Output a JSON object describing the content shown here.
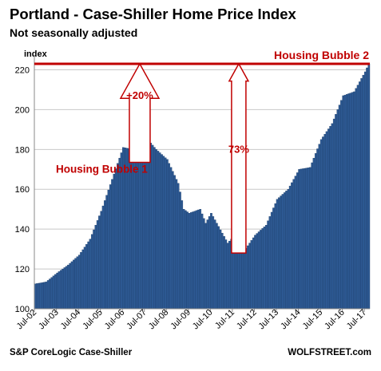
{
  "chart_data": {
    "type": "bar",
    "title": "Portland - Case-Shiller Home Price Index",
    "subtitle": "Not seasonally adjusted",
    "ylabel": "index",
    "xlabel": "",
    "ylim": [
      100,
      225
    ],
    "yticks": [
      100,
      120,
      140,
      160,
      180,
      200,
      220
    ],
    "xticks": [
      "Jul-02",
      "Jul-03",
      "Jul-04",
      "Jul-05",
      "Jul-06",
      "Jul-07",
      "Jul-08",
      "Jul-09",
      "Jul-10",
      "Jul-11",
      "Jul-12",
      "Jul-13",
      "Jul-14",
      "Jul-15",
      "Jul-16",
      "Jul-17"
    ],
    "grid": true,
    "x_start": "2002-07",
    "x_end": "2017-09",
    "bar_color": "#2e5a94",
    "annotation_color": "#c00000",
    "anchors": [
      [
        "2002-07",
        112.5
      ],
      [
        "2003-01",
        113.5
      ],
      [
        "2003-07",
        118
      ],
      [
        "2004-01",
        122
      ],
      [
        "2004-07",
        127
      ],
      [
        "2005-01",
        135
      ],
      [
        "2005-07",
        149
      ],
      [
        "2006-01",
        165
      ],
      [
        "2006-07",
        181
      ],
      [
        "2007-01",
        180
      ],
      [
        "2007-07",
        186.5
      ],
      [
        "2008-01",
        180
      ],
      [
        "2008-07",
        175
      ],
      [
        "2009-01",
        163
      ],
      [
        "2009-04",
        150
      ],
      [
        "2009-07",
        148
      ],
      [
        "2010-01",
        150
      ],
      [
        "2010-04",
        143
      ],
      [
        "2010-07",
        148
      ],
      [
        "2011-01",
        138
      ],
      [
        "2011-04",
        133
      ],
      [
        "2011-07",
        136
      ],
      [
        "2012-01",
        129
      ],
      [
        "2012-07",
        137
      ],
      [
        "2013-01",
        142
      ],
      [
        "2013-07",
        155
      ],
      [
        "2014-01",
        160
      ],
      [
        "2014-07",
        170
      ],
      [
        "2015-01",
        171
      ],
      [
        "2015-07",
        185
      ],
      [
        "2016-01",
        193
      ],
      [
        "2016-07",
        207
      ],
      [
        "2017-01",
        209
      ],
      [
        "2017-07",
        219
      ],
      [
        "2017-09",
        223
      ]
    ],
    "annotations": {
      "bubble1_label": "Housing Bubble 1",
      "bubble2_label": "Housing Bubble 2",
      "rise_label": "+20%",
      "recovery_label": "73%"
    },
    "footer_left": "S&P CoreLogic Case-Shiller",
    "footer_right": "WOLFSTREET.com"
  }
}
